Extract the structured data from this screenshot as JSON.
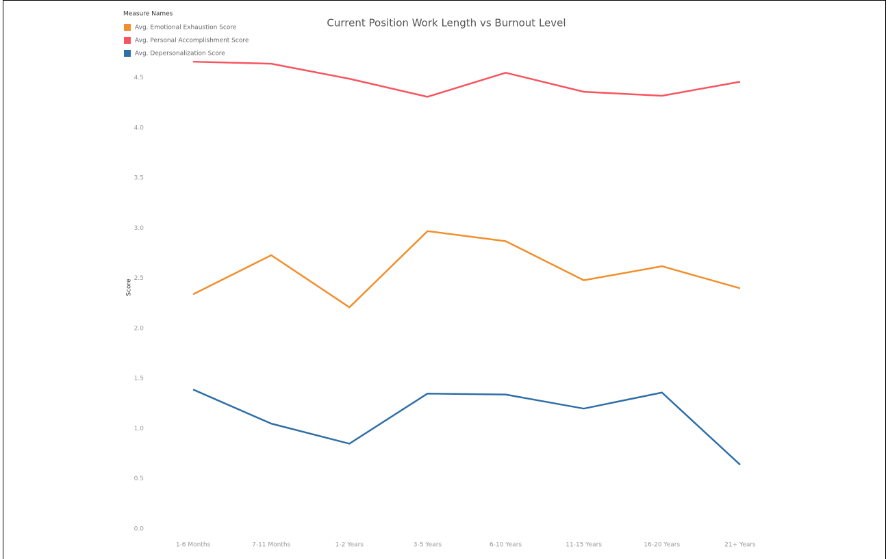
{
  "chart_data": {
    "type": "line",
    "title": "Current Position Work Length vs Burnout Level",
    "legend_title": "Measure Names",
    "legend": "top-left",
    "y_label": "Score",
    "categories": [
      "1-6 Months",
      "7-11 Months",
      "1-2 Years",
      "3-5 Years",
      "6-10 Years",
      "11-15 Years",
      "16-20 Years",
      "21+ Years"
    ],
    "series": [
      {
        "name": "Avg. Emotional Exhaustion Score",
        "color": "#f28e2b",
        "values": [
          2.34,
          2.73,
          2.21,
          2.97,
          2.87,
          2.48,
          2.62,
          2.4
        ]
      },
      {
        "name": "Avg. Personal Accomplishment Score",
        "color": "#f7545f",
        "values": [
          4.66,
          4.64,
          4.49,
          4.31,
          4.55,
          4.36,
          4.32,
          4.46
        ]
      },
      {
        "name": "Avg. Depersonalization Score",
        "color": "#2f6fa7",
        "values": [
          1.39,
          1.05,
          0.85,
          1.35,
          1.34,
          1.2,
          1.36,
          0.64
        ]
      }
    ],
    "ylim": [
      0,
      4.75
    ],
    "yticks": [
      {
        "value": 0,
        "label": "0.0"
      },
      0.5,
      {
        "value": 1,
        "label": "1.0"
      },
      1.5,
      {
        "value": 2,
        "label": "2.0"
      },
      2.5,
      {
        "value": 3,
        "label": "3.0"
      },
      3.5,
      {
        "value": 4,
        "label": "4.0"
      },
      4.5
    ],
    "grid": false
  }
}
